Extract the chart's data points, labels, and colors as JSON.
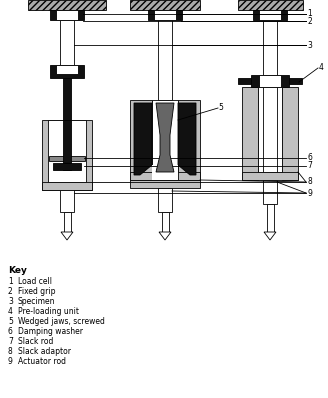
{
  "background_color": "#ffffff",
  "key_title": "Key",
  "key_items": [
    [
      "1",
      "Load cell"
    ],
    [
      "2",
      "Fixed grip"
    ],
    [
      "3",
      "Specimen"
    ],
    [
      "4",
      "Pre-loading unit"
    ],
    [
      "5",
      "Wedged jaws, screwed"
    ],
    [
      "6",
      "Damping washer"
    ],
    [
      "7",
      "Slack rod"
    ],
    [
      "8",
      "Slack adaptor"
    ],
    [
      "9",
      "Actuator rod"
    ]
  ],
  "line_color": "#000000",
  "gray_fill": "#c0c0c0",
  "dark_fill": "#111111",
  "white_fill": "#ffffff",
  "label_color": "#444444",
  "hatch_bg": "#aaaaaa"
}
